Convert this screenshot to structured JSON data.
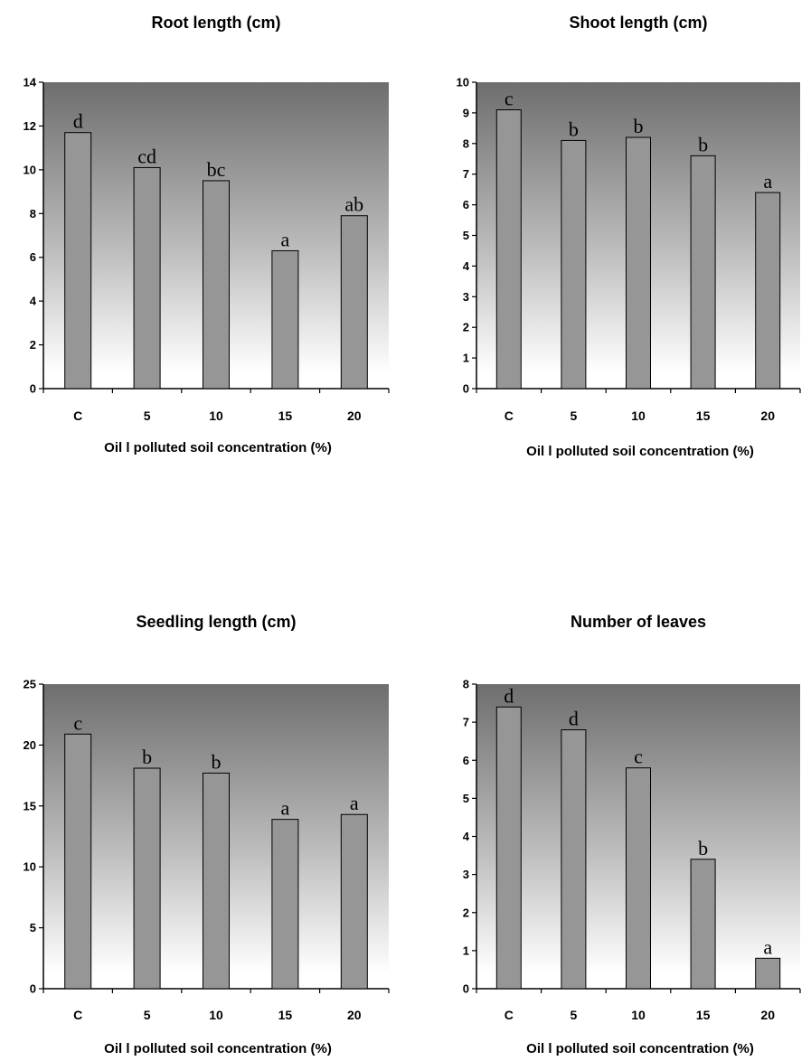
{
  "chart_data": [
    {
      "type": "bar",
      "title": "Root length (cm)",
      "xlabel": "Oil l polluted soil concentration (%)",
      "ylabel": "",
      "categories": [
        "C",
        "5",
        "10",
        "15",
        "20"
      ],
      "values": [
        11.7,
        10.1,
        9.5,
        6.3,
        7.9
      ],
      "significance_letters": [
        "d",
        "cd",
        "bc",
        "a",
        "ab"
      ],
      "ylim": [
        0,
        14
      ],
      "yticks": [
        0,
        2,
        4,
        6,
        8,
        10,
        12,
        14
      ],
      "grid": false,
      "legend": "none"
    },
    {
      "type": "bar",
      "title": "Shoot length (cm)",
      "xlabel": "Oil l polluted soil concentration (%)",
      "ylabel": "",
      "categories": [
        "C",
        "5",
        "10",
        "15",
        "20"
      ],
      "values": [
        9.1,
        8.1,
        8.2,
        7.6,
        6.4
      ],
      "significance_letters": [
        "c",
        "b",
        "b",
        "b",
        "a"
      ],
      "ylim": [
        0,
        10
      ],
      "yticks": [
        0,
        1,
        2,
        3,
        4,
        5,
        6,
        7,
        8,
        9,
        10
      ],
      "grid": false,
      "legend": "none"
    },
    {
      "type": "bar",
      "title": "Seedling length (cm)",
      "xlabel": "Oil l polluted soil concentration (%)",
      "ylabel": "",
      "categories": [
        "C",
        "5",
        "10",
        "15",
        "20"
      ],
      "values": [
        20.9,
        18.1,
        17.7,
        13.9,
        14.3
      ],
      "significance_letters": [
        "c",
        "b",
        "b",
        "a",
        "a"
      ],
      "ylim": [
        0,
        25
      ],
      "yticks": [
        0,
        5,
        10,
        15,
        20,
        25
      ],
      "grid": false,
      "legend": "none"
    },
    {
      "type": "bar",
      "title": "Number of leaves",
      "xlabel": "Oil l polluted soil concentration (%)",
      "ylabel": "",
      "categories": [
        "C",
        "5",
        "10",
        "15",
        "20"
      ],
      "values": [
        7.4,
        6.8,
        5.8,
        3.4,
        0.8
      ],
      "significance_letters": [
        "d",
        "d",
        "c",
        "b",
        "a"
      ],
      "ylim": [
        0,
        8
      ],
      "yticks": [
        0,
        1,
        2,
        3,
        4,
        5,
        6,
        7,
        8
      ],
      "grid": false,
      "legend": "none"
    }
  ],
  "colors": {
    "bar_fill": "#969696",
    "bar_stroke": "#000000",
    "plot_gradient_top": "#6e6e6e",
    "plot_gradient_bottom": "#ffffff",
    "axis": "#000000"
  }
}
